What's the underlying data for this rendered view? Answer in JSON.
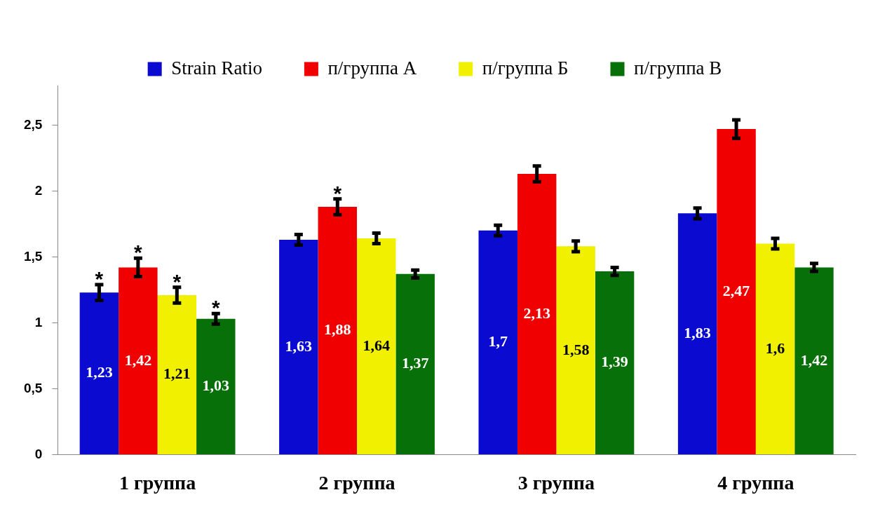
{
  "chart_data": {
    "type": "bar",
    "categories": [
      "1 группа",
      "2 группа",
      "3 группа",
      "4 группа"
    ],
    "series": [
      {
        "name": "Strain Ratio",
        "color": "#0a0ad0",
        "values": [
          1.23,
          1.63,
          1.7,
          1.83
        ],
        "value_labels": [
          "1,23",
          "1,63",
          "1,7",
          "1,83"
        ],
        "errors": [
          0.06,
          0.04,
          0.04,
          0.04
        ]
      },
      {
        "name": "п/группа А",
        "color": "#f00000",
        "values": [
          1.42,
          1.88,
          2.13,
          2.47
        ],
        "value_labels": [
          "1,42",
          "1,88",
          "2,13",
          "2,47"
        ],
        "errors": [
          0.07,
          0.06,
          0.06,
          0.07
        ]
      },
      {
        "name": "п/группа Б",
        "color": "#f0f000",
        "values": [
          1.21,
          1.64,
          1.58,
          1.6
        ],
        "value_labels": [
          "1,21",
          "1,64",
          "1,58",
          "1,6"
        ],
        "errors": [
          0.06,
          0.04,
          0.04,
          0.04
        ]
      },
      {
        "name": "п/группа В",
        "color": "#087008",
        "values": [
          1.03,
          1.37,
          1.39,
          1.42
        ],
        "value_labels": [
          "1,03",
          "1,37",
          "1,39",
          "1,42"
        ],
        "errors": [
          0.04,
          0.03,
          0.03,
          0.03
        ]
      }
    ],
    "ylim": [
      0,
      2.8
    ],
    "yticks": [
      0,
      {
        "value": 0.5,
        "label": "0,5"
      },
      1,
      {
        "value": 1.5,
        "label": "1,5"
      },
      2,
      {
        "value": 2.5,
        "label": "2,5"
      }
    ],
    "legend": "top",
    "grid": false,
    "annotations": [
      {
        "text": "*",
        "x": "1 группа",
        "y": 1.23
      },
      {
        "text": "*",
        "x": "1 группа",
        "y": 1.42
      },
      {
        "text": "*",
        "x": "1 группа",
        "y": 1.21
      },
      {
        "text": "*",
        "x": "1 группа",
        "y": 1.03
      },
      {
        "text": "*",
        "x": "2 группа",
        "y": 1.88
      }
    ]
  }
}
